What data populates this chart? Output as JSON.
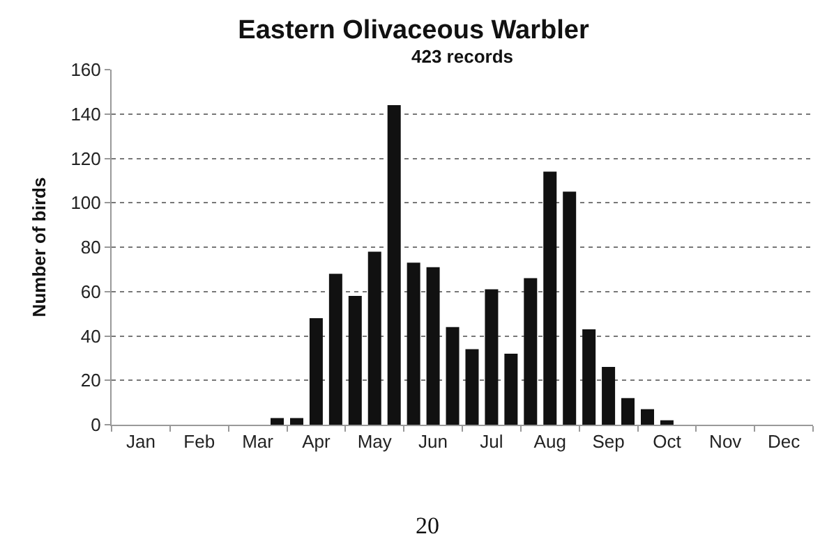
{
  "chart_data": {
    "type": "bar",
    "title": "Eastern Olivaceous Warbler",
    "subtitle": "423 records",
    "ylabel": "Number of birds",
    "categories": [
      null,
      "Jan",
      null,
      null,
      "Feb",
      null,
      null,
      "Mar",
      null,
      null,
      "Apr",
      null,
      null,
      "May",
      null,
      null,
      "Jun",
      null,
      null,
      "Jul",
      null,
      null,
      "Aug",
      null,
      null,
      "Sep",
      null,
      null,
      "Oct",
      null,
      null,
      "Nov",
      null,
      null,
      "Dec",
      null
    ],
    "values": [
      0,
      0,
      0,
      0,
      0,
      0,
      0,
      0,
      3,
      3,
      48,
      68,
      58,
      78,
      144,
      73,
      71,
      44,
      34,
      61,
      32,
      66,
      114,
      105,
      43,
      26,
      12,
      7,
      2,
      0,
      0,
      0,
      0,
      0,
      0,
      0
    ],
    "color": "#111111",
    "ylim": [
      0,
      160
    ],
    "yticks": [
      0,
      20,
      40,
      60,
      80,
      100,
      120,
      140,
      160
    ],
    "grid": "y",
    "annotations": [
      "20"
    ]
  }
}
